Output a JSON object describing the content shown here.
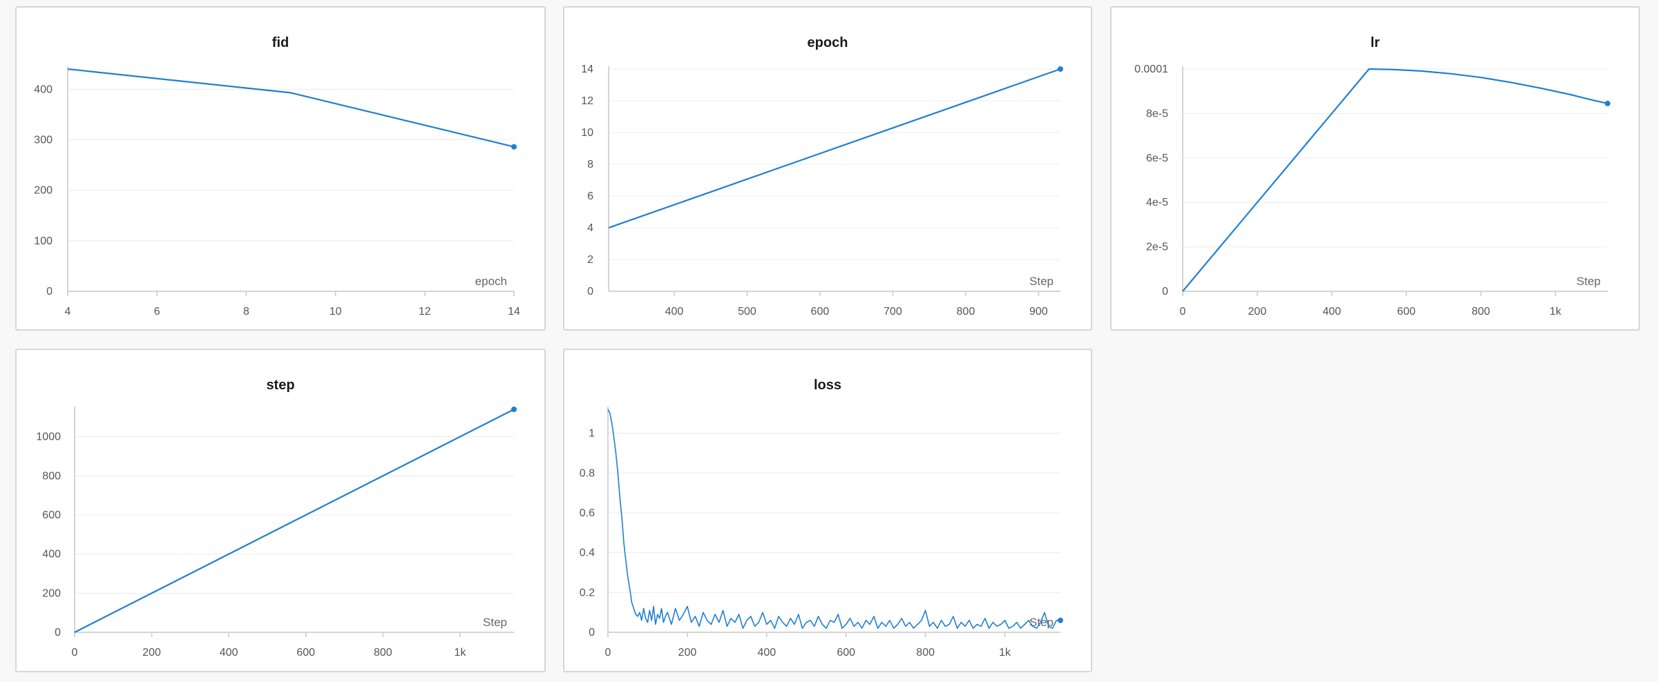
{
  "style": {
    "line_color": "#1f7fd1",
    "grid_color": "#ececec",
    "axis_color": "#d4d4d4",
    "background": "#f8f8f8",
    "panel_background": "#ffffff"
  },
  "chart_data": [
    {
      "id": "fid",
      "type": "line",
      "title": "fid",
      "xlabel": "epoch",
      "ylabel": "",
      "xlim": [
        4,
        14
      ],
      "ylim": [
        0,
        440
      ],
      "xticks": [
        4,
        6,
        8,
        10,
        12,
        14
      ],
      "xtick_labels": [
        "4",
        "6",
        "8",
        "10",
        "12",
        "14"
      ],
      "yticks": [
        0,
        100,
        200,
        300,
        400
      ],
      "ytick_labels": [
        "0",
        "100",
        "200",
        "300",
        "400"
      ],
      "grid": true,
      "series": [
        {
          "x": [
            4,
            9,
            14
          ],
          "y": [
            440,
            393,
            286
          ]
        }
      ]
    },
    {
      "id": "epoch",
      "type": "line",
      "title": "epoch",
      "xlabel": "Step",
      "ylabel": "",
      "xlim": [
        310,
        930
      ],
      "ylim": [
        0,
        14
      ],
      "xticks": [
        400,
        500,
        600,
        700,
        800,
        900
      ],
      "xtick_labels": [
        "400",
        "500",
        "600",
        "700",
        "800",
        "900"
      ],
      "yticks": [
        0,
        2,
        4,
        6,
        8,
        10,
        12,
        14
      ],
      "ytick_labels": [
        "0",
        "2",
        "4",
        "6",
        "8",
        "10",
        "12",
        "14"
      ],
      "grid": true,
      "series": [
        {
          "x": [
            310,
            930
          ],
          "y": [
            4,
            14
          ]
        }
      ]
    },
    {
      "id": "lr",
      "type": "line",
      "title": "lr",
      "xlabel": "Step",
      "ylabel": "",
      "xlim": [
        0,
        1140
      ],
      "ylim": [
        0,
        0.0001
      ],
      "xticks": [
        0,
        200,
        400,
        600,
        800,
        1000
      ],
      "xtick_labels": [
        "0",
        "200",
        "400",
        "600",
        "800",
        "1k"
      ],
      "yticks": [
        0,
        2e-05,
        4e-05,
        6e-05,
        8e-05,
        0.0001
      ],
      "ytick_labels": [
        "0",
        "2e-5",
        "4e-5",
        "6e-5",
        "8e-5",
        "0.0001"
      ],
      "grid": true,
      "series": [
        {
          "x": [
            0,
            500,
            560,
            640,
            720,
            800,
            880,
            960,
            1040,
            1100,
            1140
          ],
          "y": [
            0,
            0.0001,
            9.98e-05,
            9.91e-05,
            9.79e-05,
            9.62e-05,
            9.4e-05,
            9.14e-05,
            8.85e-05,
            8.6e-05,
            8.45e-05
          ]
        }
      ]
    },
    {
      "id": "step",
      "type": "line",
      "title": "step",
      "xlabel": "Step",
      "ylabel": "",
      "xlim": [
        0,
        1140
      ],
      "ylim": [
        0,
        1140
      ],
      "xticks": [
        0,
        200,
        400,
        600,
        800,
        1000
      ],
      "xtick_labels": [
        "0",
        "200",
        "400",
        "600",
        "800",
        "1k"
      ],
      "yticks": [
        0,
        200,
        400,
        600,
        800,
        1000
      ],
      "ytick_labels": [
        "0",
        "200",
        "400",
        "600",
        "800",
        "1000"
      ],
      "grid": true,
      "series": [
        {
          "x": [
            0,
            1140
          ],
          "y": [
            0,
            1140
          ]
        }
      ]
    },
    {
      "id": "loss",
      "type": "line",
      "title": "loss",
      "xlabel": "Step",
      "ylabel": "",
      "xlim": [
        0,
        1140
      ],
      "ylim": [
        0,
        1.12
      ],
      "xticks": [
        0,
        200,
        400,
        600,
        800,
        1000
      ],
      "xtick_labels": [
        "0",
        "200",
        "400",
        "600",
        "800",
        "1k"
      ],
      "yticks": [
        0,
        0.2,
        0.4,
        0.6,
        0.8,
        1
      ],
      "ytick_labels": [
        "0",
        "0.2",
        "0.4",
        "0.6",
        "0.8",
        "1"
      ],
      "grid": true,
      "series": [
        {
          "x": [
            0,
            5,
            10,
            15,
            20,
            25,
            30,
            35,
            40,
            45,
            50,
            55,
            60,
            65,
            70,
            75,
            80,
            85,
            90,
            95,
            100,
            105,
            110,
            115,
            120,
            125,
            130,
            135,
            140,
            145,
            150,
            160,
            170,
            180,
            190,
            200,
            210,
            220,
            230,
            240,
            250,
            260,
            270,
            280,
            290,
            300,
            310,
            320,
            330,
            340,
            350,
            360,
            370,
            380,
            390,
            400,
            410,
            420,
            430,
            440,
            450,
            460,
            470,
            480,
            490,
            500,
            510,
            520,
            530,
            540,
            550,
            560,
            570,
            580,
            590,
            600,
            610,
            620,
            630,
            640,
            650,
            660,
            670,
            680,
            690,
            700,
            710,
            720,
            730,
            740,
            750,
            760,
            770,
            780,
            790,
            800,
            810,
            820,
            830,
            840,
            850,
            860,
            870,
            880,
            890,
            900,
            910,
            920,
            930,
            940,
            950,
            960,
            970,
            980,
            990,
            1000,
            1010,
            1020,
            1030,
            1040,
            1050,
            1060,
            1070,
            1080,
            1090,
            1100,
            1110,
            1120,
            1130,
            1140
          ],
          "y": [
            1.12,
            1.1,
            1.05,
            0.98,
            0.9,
            0.8,
            0.68,
            0.58,
            0.45,
            0.36,
            0.28,
            0.22,
            0.15,
            0.12,
            0.09,
            0.08,
            0.1,
            0.06,
            0.12,
            0.07,
            0.05,
            0.11,
            0.06,
            0.13,
            0.04,
            0.09,
            0.07,
            0.12,
            0.05,
            0.08,
            0.1,
            0.04,
            0.12,
            0.06,
            0.09,
            0.13,
            0.05,
            0.08,
            0.03,
            0.1,
            0.06,
            0.04,
            0.09,
            0.05,
            0.11,
            0.03,
            0.07,
            0.05,
            0.09,
            0.02,
            0.06,
            0.08,
            0.03,
            0.05,
            0.1,
            0.04,
            0.06,
            0.02,
            0.08,
            0.05,
            0.03,
            0.07,
            0.04,
            0.09,
            0.02,
            0.05,
            0.06,
            0.03,
            0.08,
            0.04,
            0.02,
            0.06,
            0.05,
            0.09,
            0.02,
            0.04,
            0.07,
            0.03,
            0.05,
            0.02,
            0.06,
            0.04,
            0.08,
            0.02,
            0.05,
            0.03,
            0.06,
            0.02,
            0.04,
            0.07,
            0.03,
            0.05,
            0.02,
            0.04,
            0.06,
            0.11,
            0.03,
            0.05,
            0.02,
            0.06,
            0.03,
            0.04,
            0.08,
            0.02,
            0.05,
            0.03,
            0.06,
            0.02,
            0.04,
            0.03,
            0.07,
            0.02,
            0.05,
            0.03,
            0.04,
            0.06,
            0.02,
            0.03,
            0.05,
            0.02,
            0.04,
            0.06,
            0.03,
            0.02,
            0.05,
            0.1,
            0.03,
            0.02,
            0.06,
            0.06
          ]
        }
      ]
    }
  ]
}
